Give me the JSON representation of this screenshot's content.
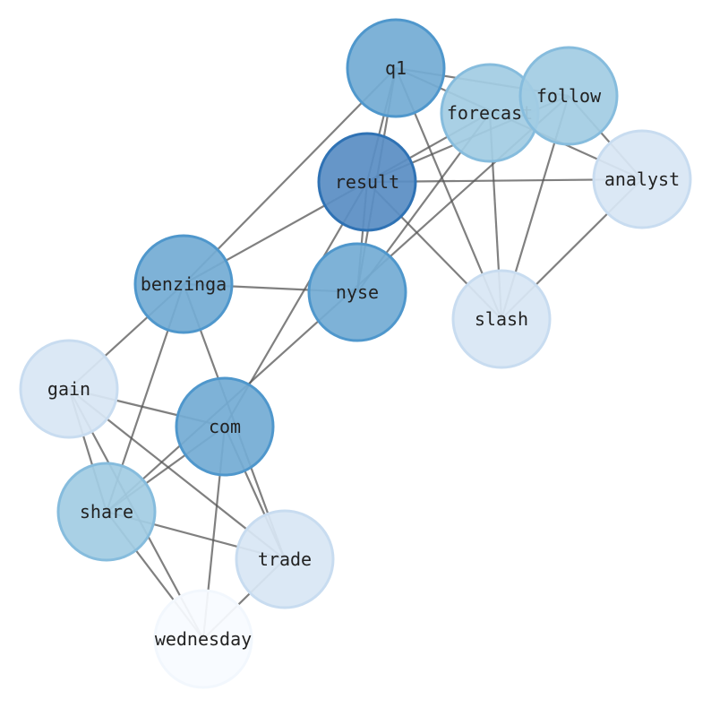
{
  "chart_data": {
    "type": "network",
    "nodes": [
      {
        "id": "q1",
        "label": "q1",
        "color": "#74acd4",
        "stroke": "#4f97cc"
      },
      {
        "id": "forecast",
        "label": "forecast",
        "color": "#a3cce3",
        "stroke": "#86bcdd"
      },
      {
        "id": "follow",
        "label": "follow",
        "color": "#a3cce3",
        "stroke": "#86bcdd"
      },
      {
        "id": "analyst",
        "label": "analyst",
        "color": "#d8e6f4",
        "stroke": "#c8dcf0"
      },
      {
        "id": "result",
        "label": "result",
        "color": "#5a8ec4",
        "stroke": "#2f72b4"
      },
      {
        "id": "benzinga",
        "label": "benzinga",
        "color": "#74acd4",
        "stroke": "#4f97cc"
      },
      {
        "id": "nyse",
        "label": "nyse",
        "color": "#74acd4",
        "stroke": "#4f97cc"
      },
      {
        "id": "slash",
        "label": "slash",
        "color": "#d8e6f4",
        "stroke": "#c8dcf0"
      },
      {
        "id": "gain",
        "label": "gain",
        "color": "#d8e6f4",
        "stroke": "#c8dcf0"
      },
      {
        "id": "com",
        "label": "com",
        "color": "#74acd4",
        "stroke": "#4f97cc"
      },
      {
        "id": "share",
        "label": "share",
        "color": "#a3cce3",
        "stroke": "#86bcdd"
      },
      {
        "id": "trade",
        "label": "trade",
        "color": "#d8e6f4",
        "stroke": "#c8dcf0"
      },
      {
        "id": "wednesday",
        "label": "wednesday",
        "color": "#f7fbff",
        "stroke": "#f2f7fd"
      }
    ],
    "edges": [
      [
        "q1",
        "benzinga"
      ],
      [
        "q1",
        "result"
      ],
      [
        "q1",
        "nyse"
      ],
      [
        "q1",
        "slash"
      ],
      [
        "q1",
        "follow"
      ],
      [
        "q1",
        "analyst"
      ],
      [
        "forecast",
        "result"
      ],
      [
        "forecast",
        "nyse"
      ],
      [
        "forecast",
        "slash"
      ],
      [
        "follow",
        "result"
      ],
      [
        "follow",
        "slash"
      ],
      [
        "follow",
        "analyst"
      ],
      [
        "follow",
        "share"
      ],
      [
        "result",
        "analyst"
      ],
      [
        "result",
        "slash"
      ],
      [
        "result",
        "benzinga"
      ],
      [
        "result",
        "nyse"
      ],
      [
        "result",
        "com"
      ],
      [
        "benzinga",
        "nyse"
      ],
      [
        "benzinga",
        "gain"
      ],
      [
        "benzinga",
        "share"
      ],
      [
        "benzinga",
        "trade"
      ],
      [
        "gain",
        "com"
      ],
      [
        "gain",
        "share"
      ],
      [
        "gain",
        "wednesday"
      ],
      [
        "gain",
        "trade"
      ],
      [
        "share",
        "com"
      ],
      [
        "share",
        "trade"
      ],
      [
        "share",
        "wednesday"
      ],
      [
        "com",
        "trade"
      ],
      [
        "com",
        "wednesday"
      ],
      [
        "trade",
        "wednesday"
      ],
      [
        "analyst",
        "slash"
      ]
    ]
  }
}
